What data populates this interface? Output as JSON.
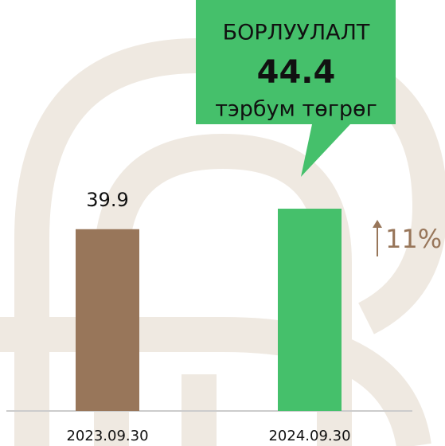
{
  "chart_data": {
    "type": "bar",
    "categories": [
      "2023.09.30",
      "2024.09.30"
    ],
    "values": [
      39.9,
      44.4
    ],
    "colors": [
      "#98765a",
      "#45c06b"
    ],
    "ylim": [
      0,
      50
    ],
    "callout": {
      "title": "БОРЛУУЛАЛТ",
      "unit": "тэрбум төгрөг"
    },
    "change_label": "11%"
  }
}
